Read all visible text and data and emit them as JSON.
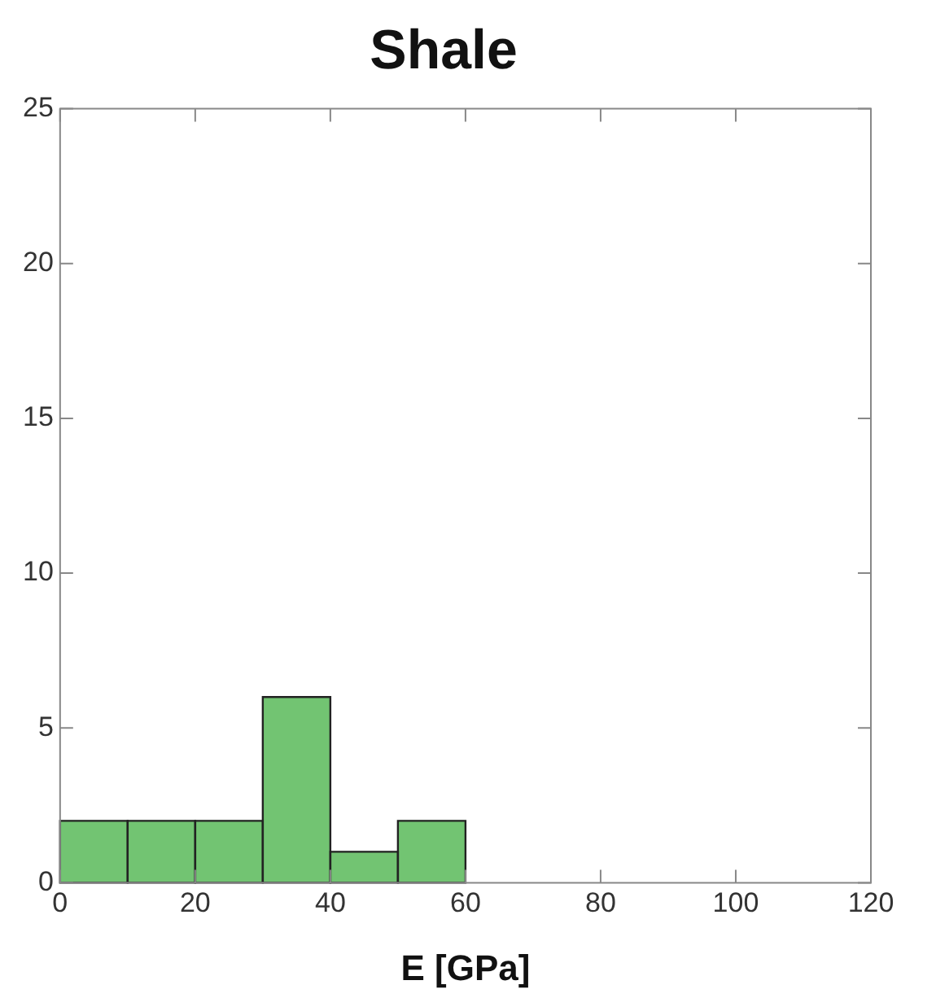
{
  "chart_data": {
    "type": "histogram",
    "title": "Shale",
    "xlabel": "E [GPa]",
    "bins": [
      0,
      10,
      20,
      30,
      40,
      50,
      60
    ],
    "values": [
      2,
      2,
      2,
      6,
      1,
      2
    ],
    "color": "#72c472",
    "xlim": [
      0,
      120
    ],
    "xticks": [
      0,
      20,
      40,
      60,
      80,
      100,
      120
    ],
    "ylim": [
      0,
      25
    ],
    "yticks": [
      0,
      5,
      10,
      15,
      20,
      25
    ],
    "grid": false,
    "legend": false
  }
}
